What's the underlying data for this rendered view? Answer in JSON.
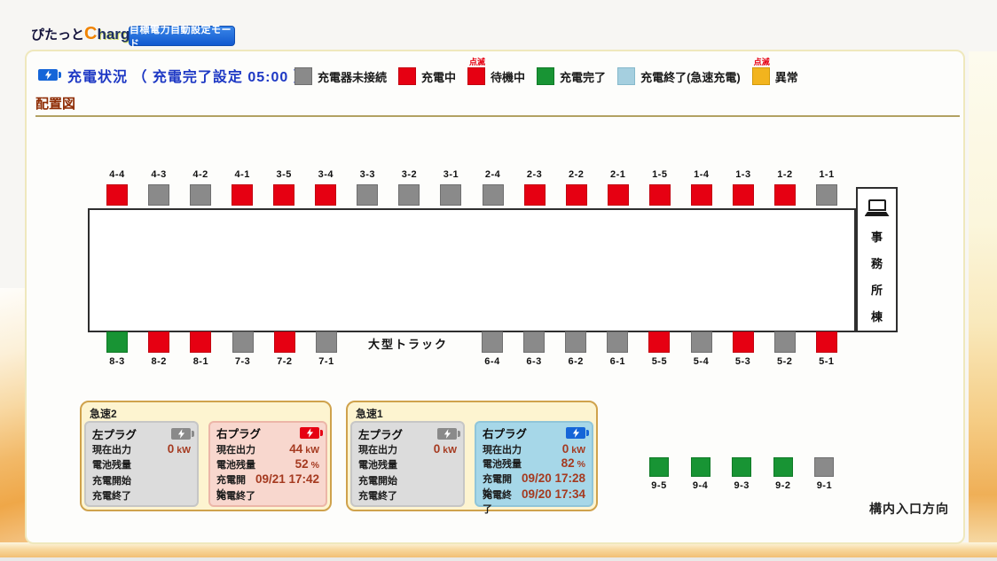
{
  "app": {
    "logo_prefix": "ぴたっと",
    "logo_brand_first": "C",
    "logo_brand_rest": "harge",
    "mode_button_label": "目標電力自動設定モード"
  },
  "header": {
    "title": "充電状況 （ 充電完了設定 05:00 ）"
  },
  "legend": {
    "blink_label": "点滅",
    "items": [
      {
        "label": "充電器未接続",
        "status": "disconnected",
        "blink": false
      },
      {
        "label": "充電中",
        "status": "charging",
        "blink": false
      },
      {
        "label": "待機中",
        "status": "waiting",
        "blink": true
      },
      {
        "label": "充電完了",
        "status": "complete",
        "blink": false
      },
      {
        "label": "充電終了(急速充電)",
        "status": "finished_quick",
        "blink": false
      },
      {
        "label": "異常",
        "status": "error",
        "blink": true
      }
    ]
  },
  "status_colors": {
    "disconnected": "#8a8a8a",
    "charging": "#e60012",
    "waiting": "#e60012",
    "complete": "#189434",
    "finished_quick": "#a5cfdf",
    "error": "#f2b41e"
  },
  "status_border_colors": {
    "disconnected": "#6f6f6f",
    "charging": "#c20010",
    "waiting": "#c20010",
    "complete": "#0f7a26",
    "finished_quick": "#86b9cb",
    "error": "#d29a0a"
  },
  "section": {
    "title": "配置図"
  },
  "diagram": {
    "top_row": [
      {
        "id": "4-4",
        "status": "charging"
      },
      {
        "id": "4-3",
        "status": "disconnected"
      },
      {
        "id": "4-2",
        "status": "disconnected"
      },
      {
        "id": "4-1",
        "status": "charging"
      },
      {
        "id": "3-5",
        "status": "charging"
      },
      {
        "id": "3-4",
        "status": "charging"
      },
      {
        "id": "3-3",
        "status": "disconnected"
      },
      {
        "id": "3-2",
        "status": "disconnected"
      },
      {
        "id": "3-1",
        "status": "disconnected"
      },
      {
        "id": "2-4",
        "status": "disconnected"
      },
      {
        "id": "2-3",
        "status": "charging"
      },
      {
        "id": "2-2",
        "status": "charging"
      },
      {
        "id": "2-1",
        "status": "charging"
      },
      {
        "id": "1-5",
        "status": "charging"
      },
      {
        "id": "1-4",
        "status": "charging"
      },
      {
        "id": "1-3",
        "status": "charging"
      },
      {
        "id": "1-2",
        "status": "charging"
      },
      {
        "id": "1-1",
        "status": "disconnected"
      }
    ],
    "bottom_left_row": [
      {
        "id": "8-3",
        "status": "complete"
      },
      {
        "id": "8-2",
        "status": "charging"
      },
      {
        "id": "8-1",
        "status": "charging"
      },
      {
        "id": "7-3",
        "status": "disconnected"
      },
      {
        "id": "7-2",
        "status": "charging"
      },
      {
        "id": "7-1",
        "status": "disconnected"
      }
    ],
    "bottom_right_row": [
      {
        "id": "6-4",
        "status": "disconnected"
      },
      {
        "id": "6-3",
        "status": "disconnected"
      },
      {
        "id": "6-2",
        "status": "disconnected"
      },
      {
        "id": "6-1",
        "status": "disconnected"
      },
      {
        "id": "5-5",
        "status": "charging"
      },
      {
        "id": "5-4",
        "status": "disconnected"
      },
      {
        "id": "5-3",
        "status": "charging"
      },
      {
        "id": "5-2",
        "status": "disconnected"
      },
      {
        "id": "5-1",
        "status": "charging"
      }
    ],
    "row9": [
      {
        "id": "9-5",
        "status": "complete"
      },
      {
        "id": "9-4",
        "status": "complete"
      },
      {
        "id": "9-3",
        "status": "complete"
      },
      {
        "id": "9-2",
        "status": "complete"
      },
      {
        "id": "9-1",
        "status": "disconnected"
      }
    ],
    "truck_label": "大型トラック",
    "office_label": "事務所棟",
    "entrance_label": "構内入口方向"
  },
  "quick_chargers": {
    "field_labels": {
      "output": "現在出力",
      "battery": "電池残量",
      "start": "充電開始",
      "end": "充電終了"
    },
    "panels": [
      {
        "key": "quick-charger-2",
        "title": "急速2",
        "plugs": [
          {
            "side": "left",
            "name": "左プラグ",
            "style": "idle",
            "output_value": "0",
            "output_unit": "kW",
            "battery_value": "",
            "battery_unit": "",
            "start_value": "",
            "end_value": ""
          },
          {
            "side": "right",
            "name": "右プラグ",
            "style": "charging",
            "output_value": "44",
            "output_unit": "kW",
            "battery_value": "52",
            "battery_unit": "%",
            "start_value": "09/21 17:42",
            "end_value": ""
          }
        ]
      },
      {
        "key": "quick-charger-1",
        "title": "急速1",
        "plugs": [
          {
            "side": "left",
            "name": "左プラグ",
            "style": "idle",
            "output_value": "0",
            "output_unit": "kW",
            "battery_value": "",
            "battery_unit": "",
            "start_value": "",
            "end_value": ""
          },
          {
            "side": "right",
            "name": "右プラグ",
            "style": "finished",
            "output_value": "0",
            "output_unit": "kW",
            "battery_value": "82",
            "battery_unit": "%",
            "start_value": "09/20 17:28",
            "end_value": "09/20 17:34"
          }
        ]
      }
    ]
  },
  "icon_colors": {
    "header_battery": "#1565d8",
    "plug_battery_idle": "#8a8a8a",
    "plug_battery_charging": "#e60012",
    "plug_battery_finished": "#1565d8"
  }
}
